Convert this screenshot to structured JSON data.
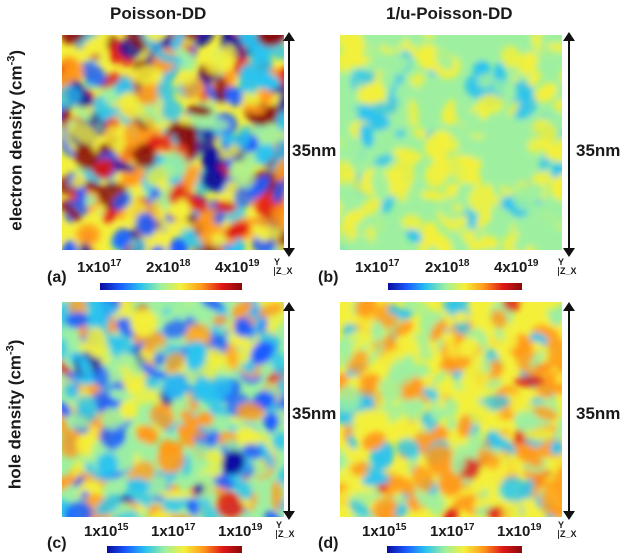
{
  "columns": {
    "left_title": "Poisson-DD",
    "right_title": "1/u-Poisson-DD"
  },
  "rows": {
    "top": {
      "label": "electron density (cm",
      "exp": "-3",
      "close": ")"
    },
    "bottom": {
      "label": "hole density (cm",
      "exp": "-3",
      "close": ")"
    }
  },
  "scale": "35nm",
  "axes": {
    "y": "Y",
    "zx": "Z_X"
  },
  "panels": [
    {
      "id": "a",
      "label": "(a)",
      "ticks": [
        {
          "base": "1x10",
          "exp": "17"
        },
        {
          "base": "2x10",
          "exp": "18"
        },
        {
          "base": "4x10",
          "exp": "19"
        }
      ]
    },
    {
      "id": "b",
      "label": "(b)",
      "ticks": [
        {
          "base": "1x10",
          "exp": "17"
        },
        {
          "base": "2x10",
          "exp": "18"
        },
        {
          "base": "4x10",
          "exp": "19"
        }
      ]
    },
    {
      "id": "c",
      "label": "(c)",
      "ticks": [
        {
          "base": "1x10",
          "exp": "15"
        },
        {
          "base": "1x10",
          "exp": "17"
        },
        {
          "base": "1x10",
          "exp": "19"
        }
      ]
    },
    {
      "id": "d",
      "label": "(d)",
      "ticks": [
        {
          "base": "1x10",
          "exp": "15"
        },
        {
          "base": "1x10",
          "exp": "17"
        },
        {
          "base": "1x10",
          "exp": "19"
        }
      ]
    }
  ],
  "colormap": [
    "#0a0aa0",
    "#1a5cff",
    "#29c3f0",
    "#9ef0a0",
    "#f4f03a",
    "#ff9a1a",
    "#e01818",
    "#8a0a0a"
  ]
}
